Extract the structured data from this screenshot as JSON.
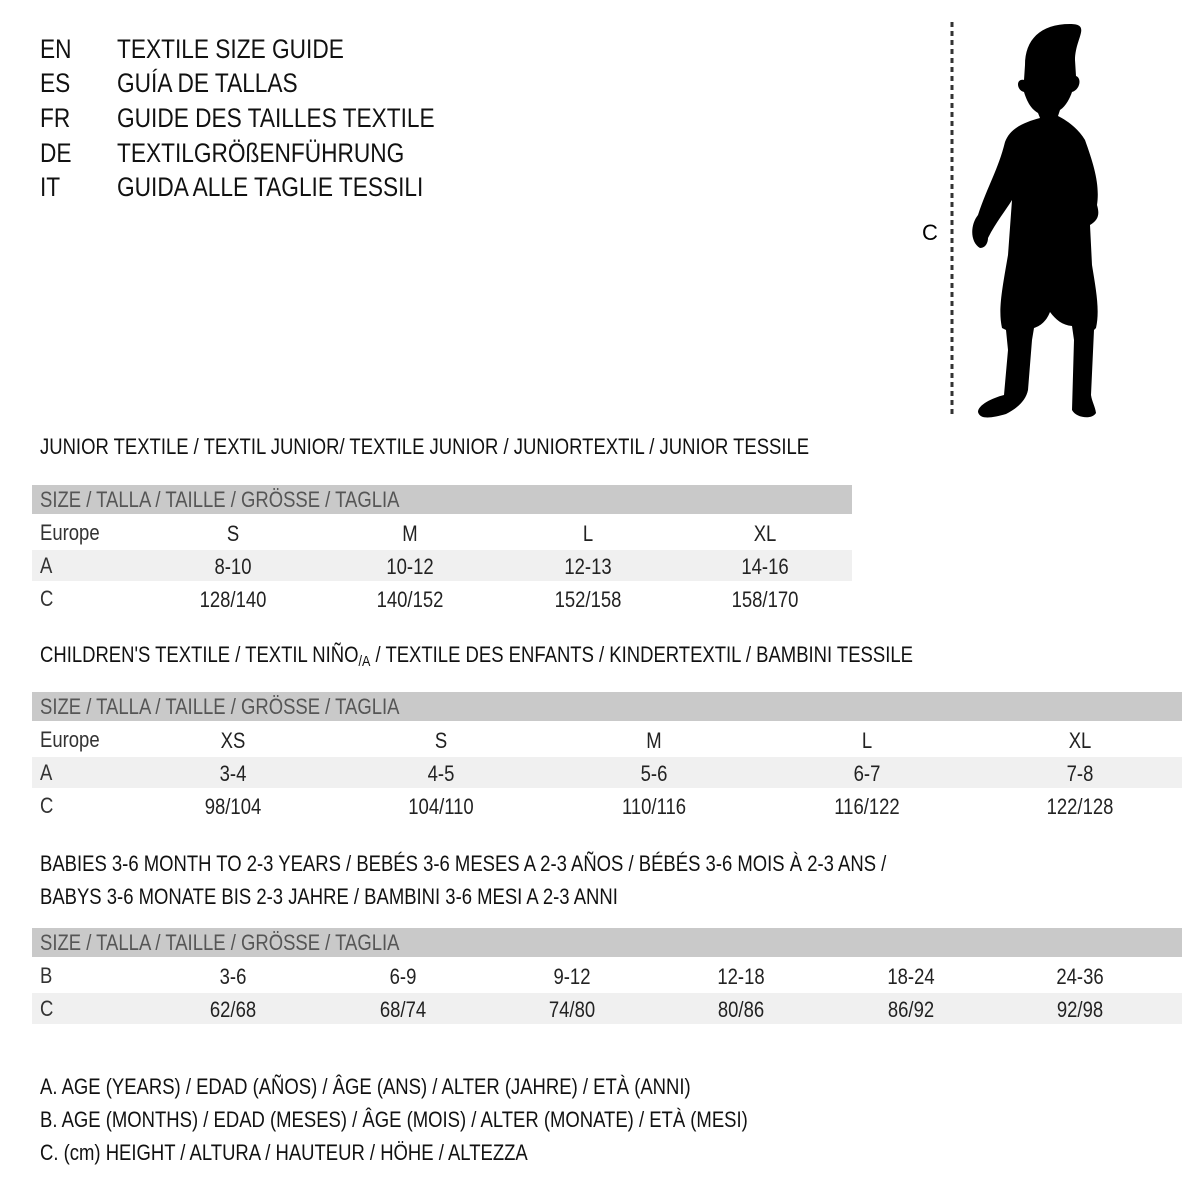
{
  "titles": [
    {
      "code": "EN",
      "text": "TEXTILE SIZE GUIDE"
    },
    {
      "code": "ES",
      "text": "GUÍA DE TALLAS"
    },
    {
      "code": "FR",
      "text": "GUIDE DES TAILLES TEXTILE"
    },
    {
      "code": "DE",
      "text": "TEXTILGRÖßENFÜHRUNG"
    },
    {
      "code": "IT",
      "text": "GUIDA ALLE TAGLIE TESSILI"
    }
  ],
  "figure": {
    "label": "C"
  },
  "junior": {
    "heading": "JUNIOR TEXTILE / TEXTIL JUNIOR/ TEXTILE JUNIOR / JUNIORTEXTIL / JUNIOR TESSILE",
    "header": "SIZE / TALLA / TAILLE / GRÖSSE / TAGLIA",
    "rows": [
      {
        "label": "Europe",
        "cells": [
          "S",
          "M",
          "L",
          "XL"
        ]
      },
      {
        "label": "A",
        "cells": [
          "8-10",
          "10-12",
          "12-13",
          "14-16"
        ]
      },
      {
        "label": "C",
        "cells": [
          "128/140",
          "140/152",
          "152/158",
          "158/170"
        ]
      }
    ]
  },
  "children": {
    "heading_pre": "CHILDREN'S TEXTILE / TEXTIL NIÑO",
    "heading_sub": "/A",
    "heading_post": " / TEXTILE DES ENFANTS / KINDERTEXTIL / BAMBINI TESSILE",
    "header": "SIZE / TALLA / TAILLE / GRÖSSE / TAGLIA",
    "rows": [
      {
        "label": "Europe",
        "cells": [
          "XS",
          "S",
          "M",
          "L",
          "XL"
        ]
      },
      {
        "label": "A",
        "cells": [
          "3-4",
          "4-5",
          "5-6",
          "6-7",
          "7-8"
        ]
      },
      {
        "label": "C",
        "cells": [
          "98/104",
          "104/110",
          "110/116",
          "116/122",
          "122/128"
        ]
      }
    ]
  },
  "babies": {
    "heading1": "BABIES 3-6 MONTH TO 2-3 YEARS / BEBÉS 3-6 MESES A 2-3 AÑOS / BÉBÉS 3-6 MOIS À 2-3 ANS /",
    "heading2": "BABYS 3-6 MONATE BIS 2-3 JAHRE / BAMBINI 3-6 MESI A 2-3 ANNI",
    "header": "SIZE / TALLA / TAILLE / GRÖSSE / TAGLIA",
    "rows": [
      {
        "label": "B",
        "cells": [
          "3-6",
          "6-9",
          "9-12",
          "12-18",
          "18-24",
          "24-36"
        ]
      },
      {
        "label": "C",
        "cells": [
          "62/68",
          "68/74",
          "74/80",
          "80/86",
          "86/92",
          "92/98"
        ]
      }
    ]
  },
  "legend": [
    "A. AGE (YEARS) / EDAD (AÑOS) / ÂGE (ANS) / ALTER (JAHRE) / ETÀ (ANNI)",
    "B. AGE (MONTHS) / EDAD (MESES) / ÂGE (MOIS) / ALTER (MONATE) / ETÀ (MESI)",
    "C. (cm) HEIGHT / ALTURA / HAUTEUR / HÖHE / ALTEZZA"
  ]
}
